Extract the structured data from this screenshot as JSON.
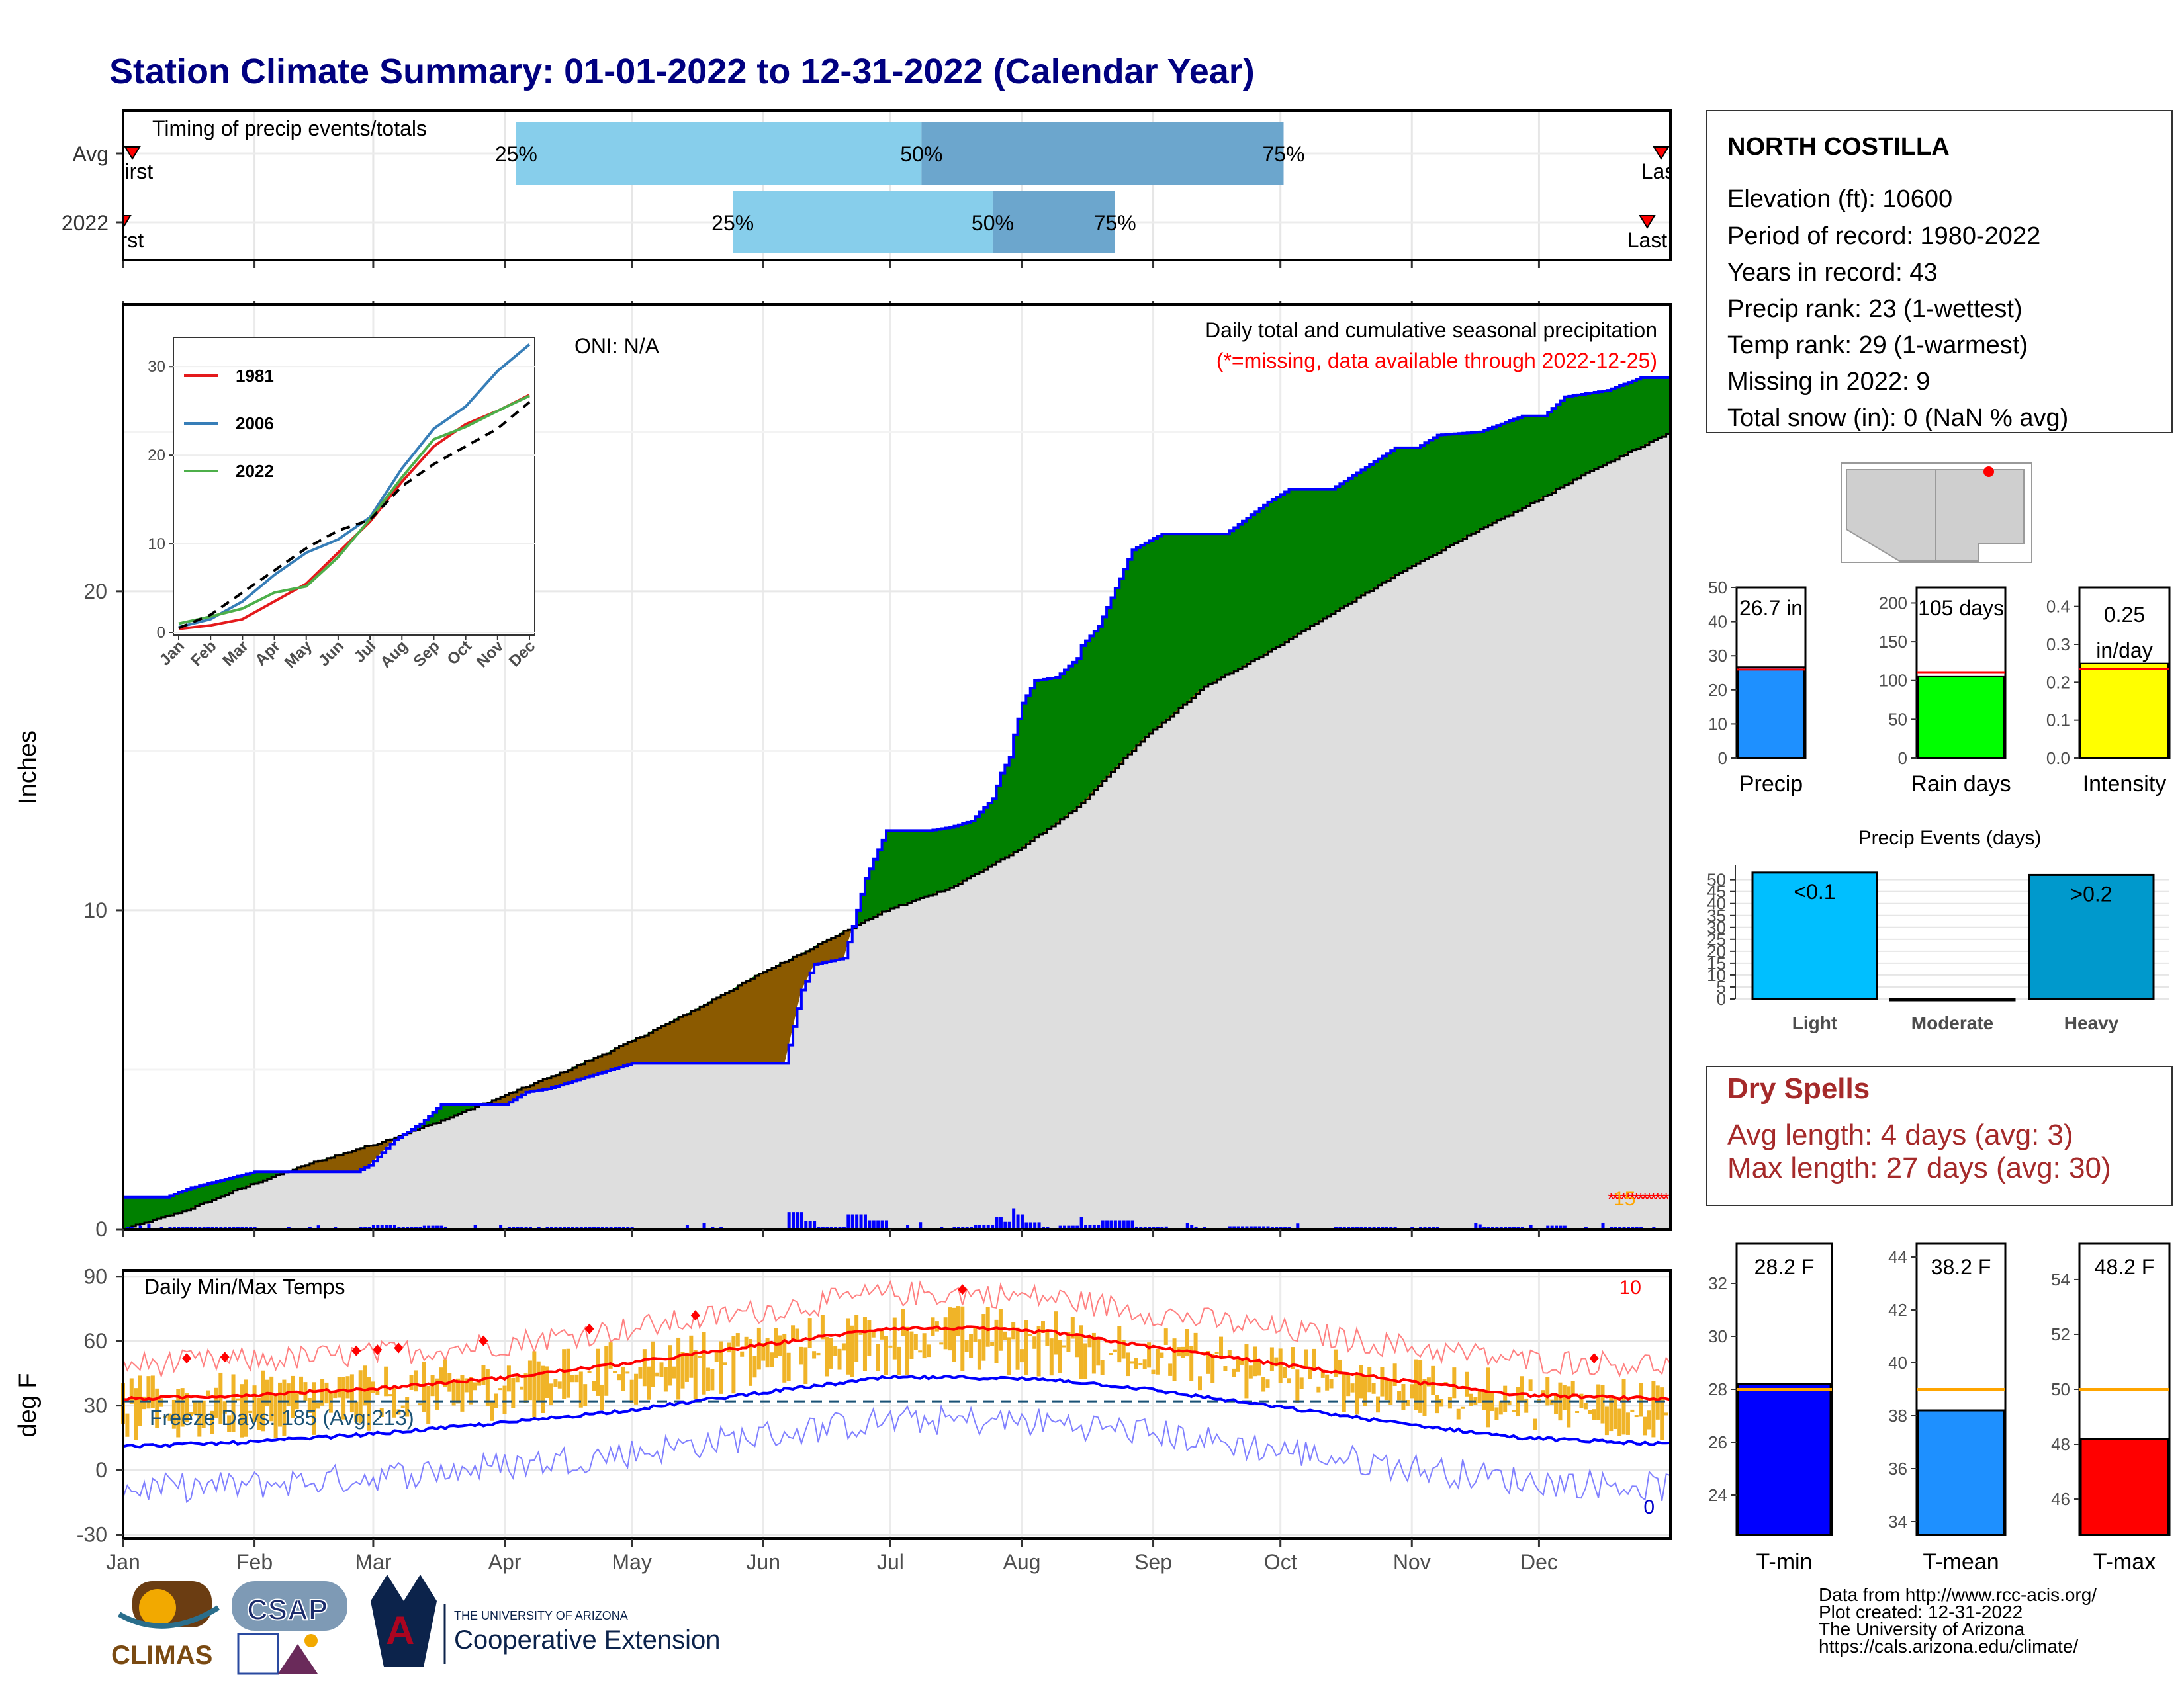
{
  "title": "Station Climate Summary: 01-01-2022 to 12-31-2022 (Calendar Year)",
  "timing": {
    "label": "Timing of precip events/totals",
    "rows": [
      {
        "name": "Avg",
        "first_text": "First",
        "last_text": "Last",
        "q25": 0.254,
        "q50": 0.516,
        "q75": 0.75,
        "first": 0.006,
        "last": 0.994
      },
      {
        "name": "2022",
        "first_text": "First",
        "last_text": "Last",
        "q25": 0.394,
        "q50": 0.562,
        "q75": 0.641,
        "first": 0.0,
        "last": 0.985
      }
    ],
    "q25_text": "25%",
    "q50_text": "50%",
    "q75_text": "75%",
    "colors": {
      "light": "#87ceeb",
      "dark": "#6ca6cd"
    }
  },
  "precip_panel": {
    "ylabel": "Inches",
    "annotation_title": "Daily total and cumulative seasonal precipitation",
    "annotation_missing": "(*=missing, data available through 2022-12-25)",
    "oni": "ONI: N/A",
    "missing_count": "15",
    "colors": {
      "surplus": "#008000",
      "deficit": "#8b5a00",
      "normal_fill": "#dedede",
      "obs_line": "#0000ff"
    }
  },
  "temp_panel": {
    "ylabel": "deg F",
    "label": "Daily Min/Max Temps",
    "freeze": "Freeze Days: 185 (Avg:213)",
    "count_hot": "10",
    "count_cold": "0"
  },
  "station": {
    "name": "NORTH COSTILLA",
    "lines": [
      "Elevation (ft): 10600",
      "Period of record: 1980-2022",
      "Years in record: 43",
      "Precip rank: 23 (1-wettest)",
      "Temp rank: 29 (1-warmest)",
      "Missing in 2022: 9",
      "Total snow (in): 0 (NaN % avg)"
    ]
  },
  "mini_bars": [
    {
      "label": "Precip",
      "value_text": "26.7 in",
      "value": 26.7,
      "avg": 26.0,
      "ymax": 50,
      "ticks": [
        0,
        10,
        20,
        30,
        40,
        50
      ],
      "color": "#1e90ff"
    },
    {
      "label": "Rain days",
      "value_text": "105 days",
      "value": 105,
      "avg": 110,
      "ymax": 220,
      "ticks": [
        0,
        50,
        100,
        150,
        200
      ],
      "color": "#00ff00"
    },
    {
      "label": "Intensity",
      "value_text": "0.25 in/day",
      "value_line1": "0.25",
      "value_line2": "in/day",
      "value": 0.25,
      "avg": 0.235,
      "ymax": 0.45,
      "ticks": [
        0.0,
        0.1,
        0.2,
        0.3,
        0.4
      ],
      "tick_fmt": 1,
      "color": "#ffff00"
    }
  ],
  "precip_events": {
    "title": "Precip Events (days)",
    "categories": [
      "Light",
      "Moderate",
      "Heavy"
    ],
    "labels": [
      "<0.1",
      "",
      ">0.2"
    ],
    "values": [
      53,
      0,
      52
    ],
    "colors": [
      "#00bfff",
      "#8bb6d6",
      "#0099cc"
    ],
    "ticks": [
      0,
      5,
      10,
      15,
      20,
      25,
      30,
      35,
      40,
      45,
      50
    ]
  },
  "dry_spells": {
    "title": "Dry Spells",
    "avg": "Avg length: 4 days (avg: 3)",
    "max": "Max length: 27 days (avg: 30)"
  },
  "temp_bars": [
    {
      "label": "T-min",
      "value_text": "28.2 F",
      "value": 28.2,
      "avg": 28.0,
      "ymin": 22.5,
      "ymax": 33.5,
      "ticks": [
        24,
        26,
        28,
        30,
        32
      ],
      "color": "#0000ff"
    },
    {
      "label": "T-mean",
      "value_text": "38.2 F",
      "value": 38.2,
      "avg": 39.0,
      "ymin": 33.5,
      "ymax": 44.5,
      "ticks": [
        34,
        36,
        38,
        40,
        42,
        44
      ],
      "color": "#1e90ff"
    },
    {
      "label": "T-max",
      "value_text": "48.2 F",
      "value": 48.2,
      "avg": 50.0,
      "ymin": 44.7,
      "ymax": 55.3,
      "ticks": [
        46,
        48,
        50,
        52,
        54
      ],
      "color": "#ff0000"
    }
  ],
  "footer": {
    "credits": [
      "Data from http://www.rcc-acis.org/",
      "Plot created: 12-31-2022",
      "The University of Arizona",
      "https://cals.arizona.edu/climate/"
    ],
    "logo_climas": "CLIMAS",
    "logo_csap": "CSAP",
    "logo_ua_small": "THE UNIVERSITY OF ARIZONA",
    "logo_ua_big": "Cooperative Extension"
  },
  "chart_data": [
    {
      "type": "area",
      "title": "Daily total and cumulative seasonal precipitation",
      "ylabel": "Inches",
      "xlabel": "",
      "ylim": [
        0,
        29
      ],
      "yticks": [
        0,
        10,
        20
      ],
      "x_months": [
        "Jan",
        "Feb",
        "Mar",
        "Apr",
        "May",
        "Jun",
        "Jul",
        "Aug",
        "Sep",
        "Oct",
        "Nov",
        "Dec"
      ],
      "series": [
        {
          "name": "cumulative 2022",
          "x": [
            0,
            10,
            16,
            31,
            45,
            55,
            58,
            64,
            70,
            75,
            80,
            90,
            95,
            100,
            110,
            120,
            130,
            140,
            150,
            156,
            160,
            163,
            170,
            175,
            180,
            190,
            195,
            200,
            205,
            207,
            209,
            210,
            212,
            215,
            220,
            225,
            226,
            230,
            238,
            245,
            250,
            260,
            265,
            270,
            275,
            280,
            285,
            300,
            305,
            310,
            320,
            330,
            335,
            340,
            350,
            358,
            365
          ],
          "y": [
            1.0,
            1.0,
            1.3,
            1.8,
            1.8,
            1.8,
            2.0,
            2.8,
            3.3,
            3.9,
            3.9,
            3.9,
            4.3,
            4.4,
            4.8,
            5.2,
            5.2,
            5.2,
            5.2,
            5.2,
            7.5,
            8.3,
            8.5,
            11.0,
            12.5,
            12.5,
            12.6,
            12.8,
            13.5,
            14.3,
            14.8,
            15.5,
            16.5,
            17.2,
            17.3,
            17.9,
            18.3,
            18.9,
            21.3,
            21.8,
            21.8,
            21.8,
            22.3,
            22.8,
            23.2,
            23.2,
            23.2,
            24.5,
            24.5,
            24.9,
            25.0,
            25.5,
            25.5,
            26.1,
            26.3,
            26.7,
            26.7
          ]
        },
        {
          "name": "cumulative average",
          "x": [
            0,
            15,
            30,
            45,
            60,
            75,
            90,
            105,
            120,
            135,
            150,
            165,
            180,
            195,
            210,
            225,
            240,
            255,
            270,
            285,
            300,
            315,
            330,
            345,
            365
          ],
          "y": [
            0.0,
            0.6,
            1.4,
            2.1,
            2.7,
            3.4,
            4.2,
            5.0,
            5.9,
            6.9,
            8.0,
            9.0,
            10.0,
            10.7,
            11.8,
            13.2,
            15.3,
            17.0,
            18.1,
            19.3,
            20.5,
            21.6,
            22.6,
            23.7,
            25.0
          ]
        }
      ],
      "daily_precip_bars": {
        "count_estimate": 105
      }
    },
    {
      "type": "line",
      "title": "Daily Min/Max Temps",
      "ylabel": "deg F",
      "ylim": [
        -32,
        93
      ],
      "yticks": [
        -30,
        0,
        30,
        60,
        90
      ],
      "x_months": [
        "Jan",
        "Feb",
        "Mar",
        "Apr",
        "May",
        "Jun",
        "Jul",
        "Aug",
        "Sep",
        "Oct",
        "Nov",
        "Dec"
      ],
      "freeze_line": 32,
      "series": [
        {
          "name": "avg max",
          "x": [
            0,
            30,
            60,
            90,
            120,
            150,
            180,
            200,
            220,
            240,
            270,
            300,
            330,
            365
          ],
          "y": [
            33,
            35,
            38,
            43,
            50,
            58,
            66,
            66,
            64,
            58,
            50,
            42,
            35,
            33
          ]
        },
        {
          "name": "avg min",
          "x": [
            0,
            30,
            60,
            90,
            120,
            150,
            180,
            200,
            220,
            240,
            270,
            300,
            330,
            365
          ],
          "y": [
            11,
            13,
            17,
            22,
            28,
            36,
            43,
            43,
            42,
            38,
            30,
            22,
            15,
            12
          ]
        }
      ]
    },
    {
      "type": "line",
      "title": "",
      "ylim": [
        0,
        32
      ],
      "yticks": [
        0,
        10,
        20,
        30
      ],
      "x_months": [
        "Jan",
        "Feb",
        "Mar",
        "Apr",
        "May",
        "Jun",
        "Jul",
        "Aug",
        "Sep",
        "Oct",
        "Nov",
        "Dec"
      ],
      "series": [
        {
          "name": "1981",
          "x": [
            0,
            1,
            2,
            3,
            4,
            5,
            6,
            7,
            8,
            9,
            10,
            11
          ],
          "y": [
            0.4,
            0.8,
            1.5,
            3.5,
            5.5,
            9.0,
            12.5,
            17.0,
            21.0,
            23.5,
            25.0,
            26.8
          ]
        },
        {
          "name": "2006",
          "x": [
            0,
            1,
            2,
            3,
            4,
            5,
            6,
            7,
            8,
            9,
            10,
            11
          ],
          "y": [
            0.6,
            1.5,
            3.5,
            6.5,
            9.0,
            10.5,
            13.0,
            18.5,
            23.0,
            25.5,
            29.5,
            32.5
          ]
        },
        {
          "name": "2022",
          "x": [
            0,
            1,
            2,
            3,
            4,
            5,
            6,
            7,
            8,
            9,
            10,
            11
          ],
          "y": [
            1.0,
            1.8,
            2.7,
            4.5,
            5.2,
            8.5,
            12.8,
            17.5,
            21.8,
            23.2,
            25.0,
            26.7
          ]
        },
        {
          "name": "",
          "x": [
            0,
            1,
            2,
            3,
            4,
            5,
            6,
            7,
            8,
            9,
            10,
            11
          ],
          "y": [
            0.5,
            2.0,
            4.5,
            7.0,
            9.5,
            11.5,
            12.7,
            16.5,
            19.0,
            21.0,
            23.0,
            26.0
          ]
        }
      ],
      "colors": [
        "#e41a1c",
        "#377eb8",
        "#4daf4a",
        "#000000"
      ]
    }
  ]
}
